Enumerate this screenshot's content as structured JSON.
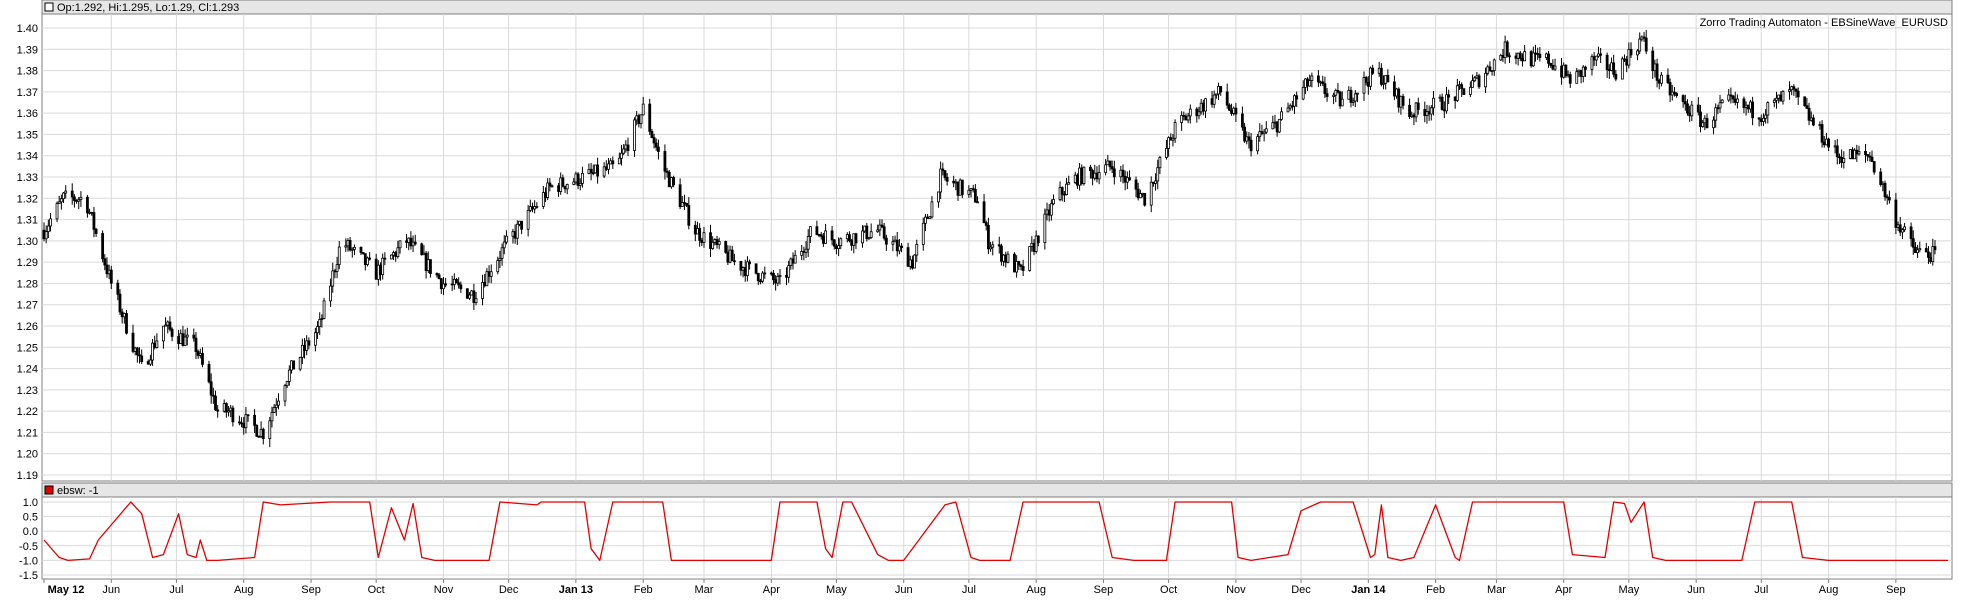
{
  "price_panel": {
    "header_text": "Op:1.292, Hi:1.295, Lo:1.29, Cl:1.293",
    "title": "Zorro Trading Automaton - EBSineWave_EURUSD"
  },
  "indicator_panel": {
    "header_text": "ebsw: -1",
    "line_color": "#e00000"
  },
  "colors": {
    "grid": "#d9d9d9",
    "frame": "#7f7f7f",
    "header_bg": "#e6e6e6",
    "candles": "#000000"
  },
  "chart_data": [
    {
      "type": "line",
      "subtype": "ohlc-candles",
      "title": "Zorro Trading Automaton - EBSineWave_EURUSD",
      "ylim": [
        1.19,
        1.4
      ],
      "yticks": [
        "1.40",
        "1.39",
        "1.38",
        "1.37",
        "1.36",
        "1.35",
        "1.34",
        "1.33",
        "1.32",
        "1.31",
        "1.30",
        "1.29",
        "1.28",
        "1.27",
        "1.26",
        "1.25",
        "1.24",
        "1.23",
        "1.22",
        "1.21",
        "1.20",
        "1.19"
      ],
      "last_bar": {
        "open": 1.292,
        "high": 1.295,
        "low": 1.29,
        "close": 1.293
      },
      "series": [
        {
          "x": [
            "2012-05-01",
            "2012-05-10",
            "2012-05-20",
            "2012-06-01",
            "2012-06-15",
            "2012-06-25",
            "2012-07-10",
            "2012-07-20",
            "2012-07-25",
            "2012-08-10",
            "2012-08-20",
            "2012-09-05",
            "2012-09-15",
            "2012-10-01",
            "2012-10-15",
            "2012-11-01",
            "2012-11-15",
            "2012-12-01",
            "2012-12-20",
            "2013-01-05",
            "2013-01-20",
            "2013-02-01",
            "2013-02-10",
            "2013-02-25",
            "2013-03-15",
            "2013-03-25",
            "2013-04-05",
            "2013-04-20",
            "2013-05-01",
            "2013-05-20",
            "2013-06-05",
            "2013-06-18",
            "2013-07-05",
            "2013-07-10",
            "2013-07-25",
            "2013-08-10",
            "2013-08-20",
            "2013-09-05",
            "2013-09-20",
            "2013-10-05",
            "2013-10-25",
            "2013-11-07",
            "2013-11-20",
            "2013-12-05",
            "2013-12-20",
            "2014-01-05",
            "2014-01-20",
            "2014-02-05",
            "2014-02-20",
            "2014-03-05",
            "2014-03-18",
            "2014-03-25",
            "2014-04-05",
            "2014-04-15",
            "2014-04-25",
            "2014-05-07",
            "2014-05-15",
            "2014-05-25",
            "2014-06-05",
            "2014-06-15",
            "2014-07-01",
            "2014-07-15",
            "2014-07-25",
            "2014-08-05",
            "2014-08-20",
            "2014-09-01",
            "2014-09-10",
            "2014-09-20"
          ],
          "y": [
            1.305,
            1.32,
            1.32,
            1.28,
            1.24,
            1.26,
            1.25,
            1.22,
            1.22,
            1.21,
            1.235,
            1.26,
            1.3,
            1.285,
            1.3,
            1.28,
            1.275,
            1.3,
            1.325,
            1.33,
            1.335,
            1.362,
            1.335,
            1.305,
            1.29,
            1.285,
            1.28,
            1.305,
            1.3,
            1.305,
            1.29,
            1.33,
            1.32,
            1.3,
            1.285,
            1.32,
            1.33,
            1.335,
            1.32,
            1.355,
            1.37,
            1.345,
            1.355,
            1.375,
            1.365,
            1.38,
            1.36,
            1.365,
            1.375,
            1.39,
            1.385,
            1.385,
            1.375,
            1.385,
            1.38,
            1.395,
            1.375,
            1.365,
            1.355,
            1.365,
            1.36,
            1.37,
            1.355,
            1.34,
            1.34,
            1.31,
            1.295,
            1.293
          ]
        }
      ]
    },
    {
      "type": "line",
      "title": "ebsw",
      "ylim": [
        -1.5,
        1.0
      ],
      "yticks": [
        "1.0",
        "0.5",
        "0.0",
        "-0.5",
        "-1.0",
        "-1.5"
      ],
      "xlim": [
        "2012-05-01",
        "2014-09-25"
      ],
      "xticks": [
        {
          "label": "May 12",
          "date": "2012-05-01",
          "bold": true
        },
        {
          "label": "Jun",
          "date": "2012-06-01",
          "bold": false
        },
        {
          "label": "Jul",
          "date": "2012-07-01",
          "bold": false
        },
        {
          "label": "Aug",
          "date": "2012-08-01",
          "bold": false
        },
        {
          "label": "Sep",
          "date": "2012-09-01",
          "bold": false
        },
        {
          "label": "Oct",
          "date": "2012-10-01",
          "bold": false
        },
        {
          "label": "Nov",
          "date": "2012-11-01",
          "bold": false
        },
        {
          "label": "Dec",
          "date": "2012-12-01",
          "bold": false
        },
        {
          "label": "Jan 13",
          "date": "2013-01-01",
          "bold": true
        },
        {
          "label": "Feb",
          "date": "2013-02-01",
          "bold": false
        },
        {
          "label": "Mar",
          "date": "2013-03-01",
          "bold": false
        },
        {
          "label": "Apr",
          "date": "2013-04-01",
          "bold": false
        },
        {
          "label": "May",
          "date": "2013-05-01",
          "bold": false
        },
        {
          "label": "Jun",
          "date": "2013-06-01",
          "bold": false
        },
        {
          "label": "Jul",
          "date": "2013-07-01",
          "bold": false
        },
        {
          "label": "Aug",
          "date": "2013-08-01",
          "bold": false
        },
        {
          "label": "Sep",
          "date": "2013-09-01",
          "bold": false
        },
        {
          "label": "Oct",
          "date": "2013-10-01",
          "bold": false
        },
        {
          "label": "Nov",
          "date": "2013-11-01",
          "bold": false
        },
        {
          "label": "Dec",
          "date": "2013-12-01",
          "bold": false
        },
        {
          "label": "Jan 14",
          "date": "2014-01-01",
          "bold": true
        },
        {
          "label": "Feb",
          "date": "2014-02-01",
          "bold": false
        },
        {
          "label": "Mar",
          "date": "2014-03-01",
          "bold": false
        },
        {
          "label": "Apr",
          "date": "2014-04-01",
          "bold": false
        },
        {
          "label": "May",
          "date": "2014-05-01",
          "bold": false
        },
        {
          "label": "Jun",
          "date": "2014-06-01",
          "bold": false
        },
        {
          "label": "Jul",
          "date": "2014-07-01",
          "bold": false
        },
        {
          "label": "Aug",
          "date": "2014-08-01",
          "bold": false
        },
        {
          "label": "Sep",
          "date": "2014-09-01",
          "bold": false
        }
      ],
      "series": [
        {
          "x": [
            "2012-05-01",
            "2012-05-08",
            "2012-05-12",
            "2012-05-22",
            "2012-05-26",
            "2012-06-10",
            "2012-06-15",
            "2012-06-20",
            "2012-06-25",
            "2012-07-02",
            "2012-07-06",
            "2012-07-10",
            "2012-07-12",
            "2012-07-15",
            "2012-07-20",
            "2012-08-06",
            "2012-08-10",
            "2012-08-18",
            "2012-09-10",
            "2012-09-28",
            "2012-10-02",
            "2012-10-08",
            "2012-10-14",
            "2012-10-18",
            "2012-10-22",
            "2012-10-28",
            "2012-11-01",
            "2012-11-22",
            "2012-11-27",
            "2012-12-14",
            "2012-12-16",
            "2013-01-05",
            "2013-01-08",
            "2013-01-12",
            "2013-01-18",
            "2013-02-10",
            "2013-02-14",
            "2013-04-01",
            "2013-04-05",
            "2013-04-22",
            "2013-04-26",
            "2013-04-29",
            "2013-05-04",
            "2013-05-08",
            "2013-05-20",
            "2013-05-25",
            "2013-06-01",
            "2013-06-20",
            "2013-06-25",
            "2013-07-02",
            "2013-07-06",
            "2013-07-20",
            "2013-07-26",
            "2013-08-05",
            "2013-08-30",
            "2013-09-05",
            "2013-09-15",
            "2013-09-30",
            "2013-10-04",
            "2013-10-30",
            "2013-11-02",
            "2013-11-08",
            "2013-11-25",
            "2013-12-01",
            "2013-12-10",
            "2013-12-25",
            "2014-01-02",
            "2014-01-04",
            "2014-01-07",
            "2014-01-10",
            "2014-01-16",
            "2014-01-22",
            "2014-02-01",
            "2014-02-10",
            "2014-02-12",
            "2014-02-18",
            "2014-02-21",
            "2014-02-28",
            "2014-03-05",
            "2014-04-01",
            "2014-04-05",
            "2014-04-20",
            "2014-04-24",
            "2014-04-29",
            "2014-05-02",
            "2014-05-08",
            "2014-05-12",
            "2014-05-18",
            "2014-06-22",
            "2014-06-28",
            "2014-07-15",
            "2014-07-20",
            "2014-08-01",
            "2014-08-20",
            "2014-09-25"
          ],
          "y": [
            -0.3,
            -0.9,
            -1.0,
            -0.95,
            -0.3,
            1.0,
            0.6,
            -0.9,
            -0.8,
            0.6,
            -0.8,
            -0.9,
            -0.3,
            -1.0,
            -1.0,
            -0.9,
            1.0,
            0.9,
            1.0,
            1.0,
            -0.9,
            0.8,
            -0.3,
            0.95,
            -0.9,
            -1.0,
            -1.0,
            -1.0,
            1.0,
            0.9,
            1.0,
            1.0,
            -0.6,
            -1.0,
            1.0,
            1.0,
            -1.0,
            -1.0,
            1.0,
            1.0,
            -0.6,
            -0.9,
            1.0,
            1.0,
            -0.8,
            -1.0,
            -1.0,
            0.9,
            1.0,
            -0.9,
            -1.0,
            -1.0,
            1.0,
            1.0,
            1.0,
            -0.9,
            -1.0,
            -1.0,
            1.0,
            1.0,
            -0.9,
            -1.0,
            -0.8,
            0.7,
            1.0,
            1.0,
            -0.9,
            -0.8,
            0.9,
            -0.9,
            -1.0,
            -0.9,
            0.9,
            -0.9,
            -1.0,
            1.0,
            1.0,
            1.0,
            1.0,
            1.0,
            -0.8,
            -0.9,
            1.0,
            0.95,
            0.3,
            1.0,
            -0.9,
            -1.0,
            -1.0,
            1.0,
            1.0,
            -0.9,
            -1.0,
            -1.0,
            -1.0
          ]
        }
      ]
    }
  ]
}
